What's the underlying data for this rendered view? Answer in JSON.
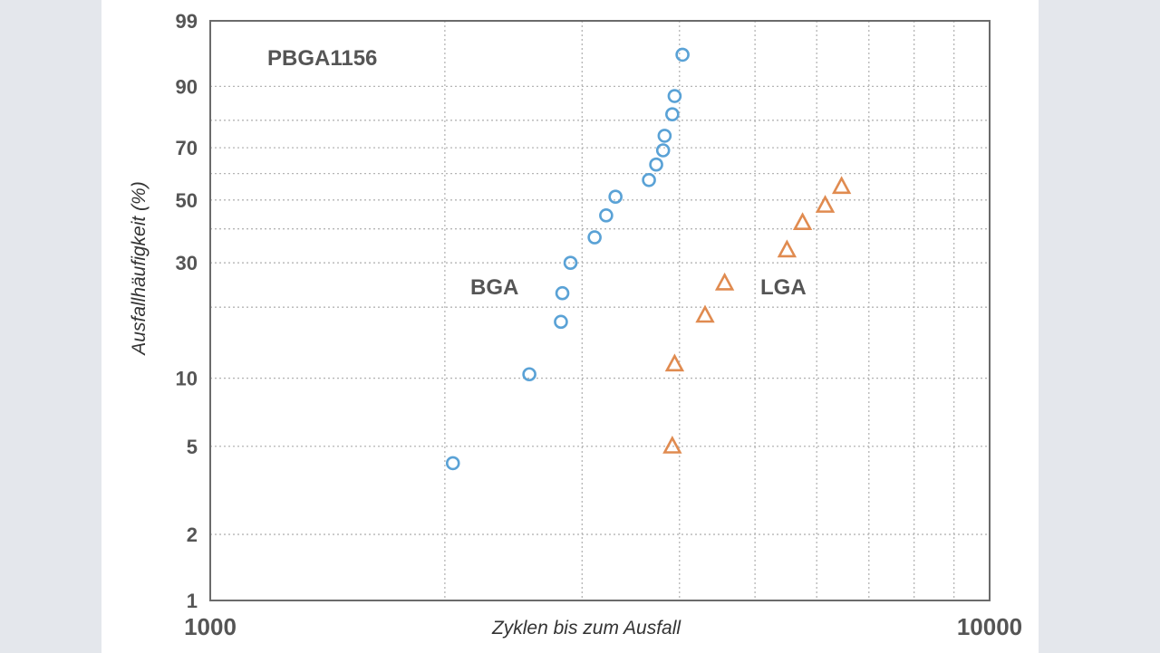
{
  "chart_data": {
    "type": "scatter",
    "x_scale": "log",
    "y_scale": "weibull",
    "xlim": [
      1000,
      10000
    ],
    "ylim": [
      1,
      99
    ],
    "x_ticks": [
      1000,
      10000
    ],
    "x_tick_labels": [
      "1000",
      "10000"
    ],
    "y_ticks": [
      1,
      2,
      5,
      10,
      30,
      50,
      70,
      90,
      99
    ],
    "y_tick_labels": [
      "1",
      "2",
      "5",
      "10",
      "30",
      "50",
      "70",
      "90",
      "99"
    ],
    "xlabel": "Zyklen bis zum Ausfall",
    "ylabel": "Ausfallhäufigkeit  (%)",
    "grid": true,
    "annotations": [
      {
        "text": "PBGA1156",
        "position": "top-left"
      },
      {
        "text": "BGA",
        "near_series": "BGA"
      },
      {
        "text": "LGA",
        "near_series": "LGA"
      }
    ],
    "series": [
      {
        "name": "BGA",
        "marker": "circle",
        "color": "#5aa2d6",
        "points": [
          [
            2048,
            4.2
          ],
          [
            2567,
            10.4
          ],
          [
            2818,
            17.4
          ],
          [
            2830,
            22.8
          ],
          [
            2899,
            30.0
          ],
          [
            3113,
            37.3
          ],
          [
            3221,
            44.5
          ],
          [
            3311,
            51.2
          ],
          [
            3655,
            57.5
          ],
          [
            3734,
            63.5
          ],
          [
            3811,
            69.0
          ],
          [
            3828,
            74.5
          ],
          [
            3916,
            82.0
          ],
          [
            3943,
            87.5
          ],
          [
            4036,
            96.0
          ]
        ]
      },
      {
        "name": "LGA",
        "marker": "triangle",
        "color": "#e08b50",
        "points": [
          [
            3916,
            5.0
          ],
          [
            3943,
            11.5
          ],
          [
            4314,
            18.5
          ],
          [
            4571,
            25.0
          ],
          [
            5495,
            33.5
          ],
          [
            5754,
            42.0
          ],
          [
            6152,
            48.0
          ],
          [
            6457,
            55.0
          ]
        ]
      }
    ]
  }
}
